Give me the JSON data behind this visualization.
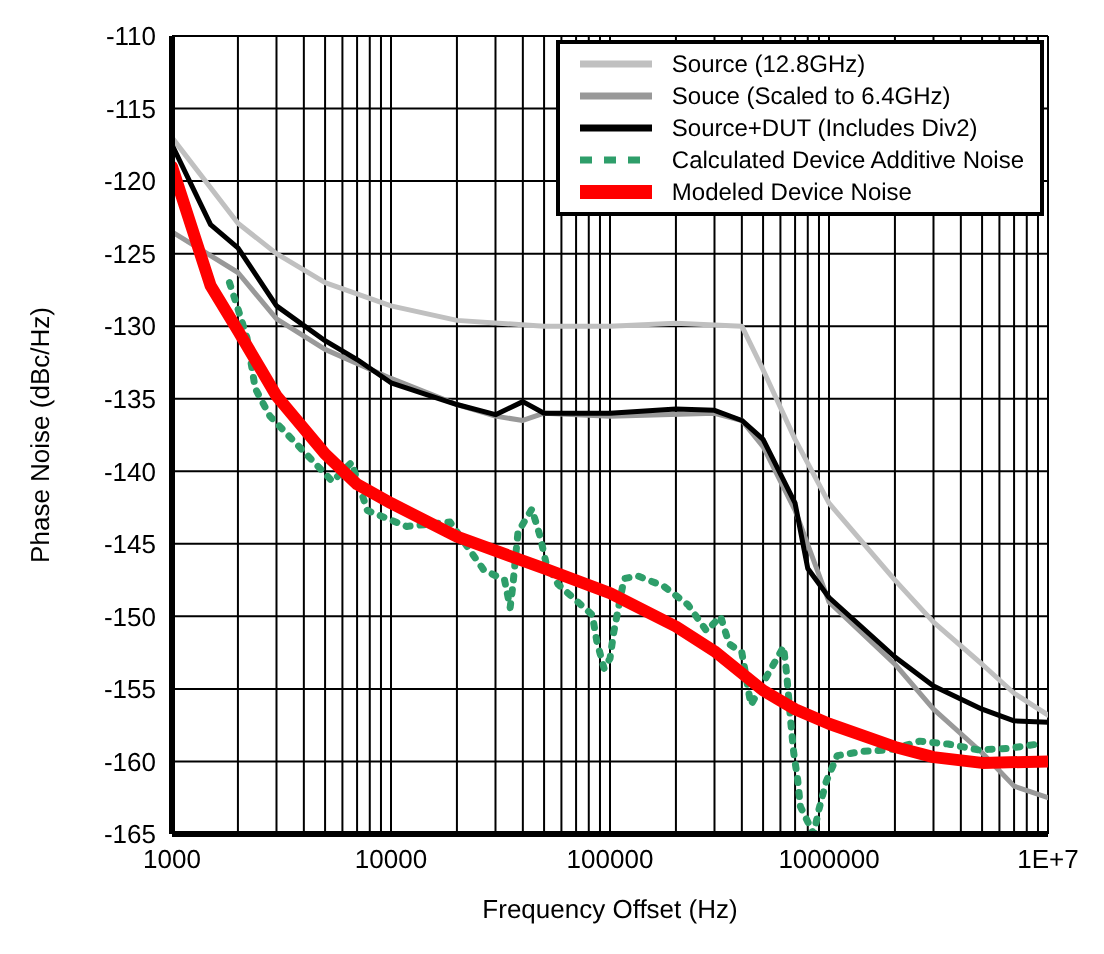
{
  "chart_data": {
    "type": "line",
    "xlabel": "Frequency Offset (Hz)",
    "ylabel": "Phase Noise (dBc/Hz)",
    "log": "x",
    "grid": true,
    "legend": "top right",
    "marker": "none",
    "xlim": [
      1000,
      10000000
    ],
    "xticks": [
      1000,
      {
        "value": 2000,
        "label": null
      },
      {
        "value": 3000,
        "label": null
      },
      {
        "value": 4000,
        "label": null
      },
      {
        "value": 5000,
        "label": null
      },
      {
        "value": 6000,
        "label": null
      },
      {
        "value": 7000,
        "label": null
      },
      {
        "value": 8000,
        "label": null
      },
      {
        "value": 9000,
        "label": null
      },
      10000,
      {
        "value": 20000,
        "label": null
      },
      {
        "value": 30000,
        "label": null
      },
      {
        "value": 40000,
        "label": null
      },
      {
        "value": 50000,
        "label": null
      },
      {
        "value": 60000,
        "label": null
      },
      {
        "value": 70000,
        "label": null
      },
      {
        "value": 80000,
        "label": null
      },
      {
        "value": 90000,
        "label": null
      },
      100000,
      {
        "value": 200000,
        "label": null
      },
      {
        "value": 300000,
        "label": null
      },
      {
        "value": 400000,
        "label": null
      },
      {
        "value": 500000,
        "label": null
      },
      {
        "value": 600000,
        "label": null
      },
      {
        "value": 700000,
        "label": null
      },
      {
        "value": 800000,
        "label": null
      },
      {
        "value": 900000,
        "label": null
      },
      1000000,
      {
        "value": 2000000,
        "label": null
      },
      {
        "value": 3000000,
        "label": null
      },
      {
        "value": 4000000,
        "label": null
      },
      {
        "value": 5000000,
        "label": null
      },
      {
        "value": 6000000,
        "label": null
      },
      {
        "value": 7000000,
        "label": null
      },
      {
        "value": 8000000,
        "label": null
      },
      {
        "value": 9000000,
        "label": null
      },
      {
        "value": 10000000,
        "label": "1E+7"
      }
    ],
    "ylim": [
      -165,
      -110
    ],
    "yticks": [
      -165,
      -160,
      -155,
      -150,
      -145,
      -140,
      -135,
      -130,
      -125,
      -120,
      -115,
      -110
    ],
    "series": [
      {
        "name": "Source (12.8GHz)",
        "color": "#c0c0c0",
        "line_style": "solid",
        "x": [
          1000,
          2000,
          3000,
          5000,
          10000,
          20000,
          50000,
          100000,
          200000,
          400000,
          500000,
          700000,
          1000000,
          2000000,
          3000000,
          5000000,
          7000000,
          10000000
        ],
        "values": [
          -117,
          -122.9,
          -125,
          -127,
          -128.6,
          -129.6,
          -130,
          -130,
          -129.8,
          -130,
          -133,
          -137.8,
          -142.2,
          -147.5,
          -150.4,
          -153.3,
          -155.3,
          -156.8
        ]
      },
      {
        "name": "Souce (Scaled to 6.4GHz)",
        "color": "#999999",
        "line_style": "solid",
        "x": [
          1000,
          2000,
          3000,
          5000,
          10000,
          20000,
          30000,
          40000,
          50000,
          100000,
          300000,
          400000,
          500000,
          700000,
          1000000,
          2000000,
          3000000,
          5000000,
          7000000,
          10000000
        ],
        "values": [
          -123.5,
          -126.3,
          -129.5,
          -131.6,
          -133.6,
          -135.4,
          -136.2,
          -136.5,
          -136,
          -136.2,
          -136,
          -136.5,
          -138.3,
          -142.7,
          -149,
          -153.3,
          -156.4,
          -159.4,
          -161.7,
          -162.5
        ]
      },
      {
        "name": "Source+DUT (Includes Div2)",
        "color": "#000000",
        "line_style": "solid",
        "x": [
          1000,
          1500,
          2000,
          3000,
          5000,
          7000,
          10000,
          20000,
          30000,
          40000,
          50000,
          100000,
          200000,
          300000,
          400000,
          500000,
          700000,
          800000,
          1000000,
          2000000,
          3000000,
          5000000,
          7000000,
          10000000
        ],
        "values": [
          -117.5,
          -123,
          -124.6,
          -128.6,
          -131,
          -132.3,
          -133.9,
          -135.4,
          -136.1,
          -135.2,
          -136,
          -136,
          -135.7,
          -135.8,
          -136.5,
          -137.8,
          -142.2,
          -146.7,
          -148.7,
          -152.8,
          -154.8,
          -156.4,
          -157.2,
          -157.3
        ]
      },
      {
        "name": "Calculated Device Additive Noise",
        "color": "#2e9e6a",
        "line_style": "dotted",
        "x": [
          1830,
          2000,
          2200,
          2400,
          2800,
          5400,
          6600,
          7800,
          11800,
          18600,
          26500,
          33000,
          35000,
          36000,
          38000,
          44000,
          48000,
          51000,
          58000,
          83000,
          87000,
          94000,
          100000,
          104000,
          116000,
          133000,
          175000,
          227000,
          276000,
          320000,
          350000,
          400000,
          440000,
          530000,
          620000,
          640000,
          670000,
          690000,
          720000,
          740000,
          850000,
          900000,
          970000,
          1090000,
          1430000,
          1900000,
          2600000,
          3500000,
          4800000,
          6600000,
          9000000
        ],
        "values": [
          -127,
          -128.8,
          -130.8,
          -134.3,
          -136.2,
          -140.7,
          -139.4,
          -142.7,
          -143.8,
          -143.5,
          -146.8,
          -147.5,
          -149.4,
          -147.9,
          -144.2,
          -142.6,
          -144.5,
          -146.3,
          -147.8,
          -149.9,
          -151.7,
          -153.6,
          -152.9,
          -151.1,
          -147.4,
          -147.2,
          -147.9,
          -149.2,
          -151,
          -150,
          -151.9,
          -152.5,
          -156.1,
          -153.9,
          -152.1,
          -153.9,
          -157.4,
          -159.4,
          -161.3,
          -163.1,
          -165,
          -163.3,
          -161.4,
          -159.6,
          -159.3,
          -159.2,
          -158.6,
          -158.8,
          -159.2,
          -159.1,
          -158.8
        ]
      },
      {
        "name": "Modeled Device Noise",
        "color": "#ff0000",
        "line_style": "solid",
        "x": [
          1000,
          1500,
          2000,
          3000,
          5000,
          7000,
          10000,
          20000,
          50000,
          100000,
          200000,
          300000,
          500000,
          700000,
          1000000,
          2000000,
          3000000,
          5000000,
          10000000
        ],
        "values": [
          -119,
          -127.2,
          -130.3,
          -134.8,
          -138.8,
          -140.9,
          -142.2,
          -144.5,
          -146.7,
          -148.4,
          -150.7,
          -152.4,
          -155.1,
          -156.4,
          -157.4,
          -159,
          -159.7,
          -160.1,
          -160
        ]
      }
    ]
  }
}
